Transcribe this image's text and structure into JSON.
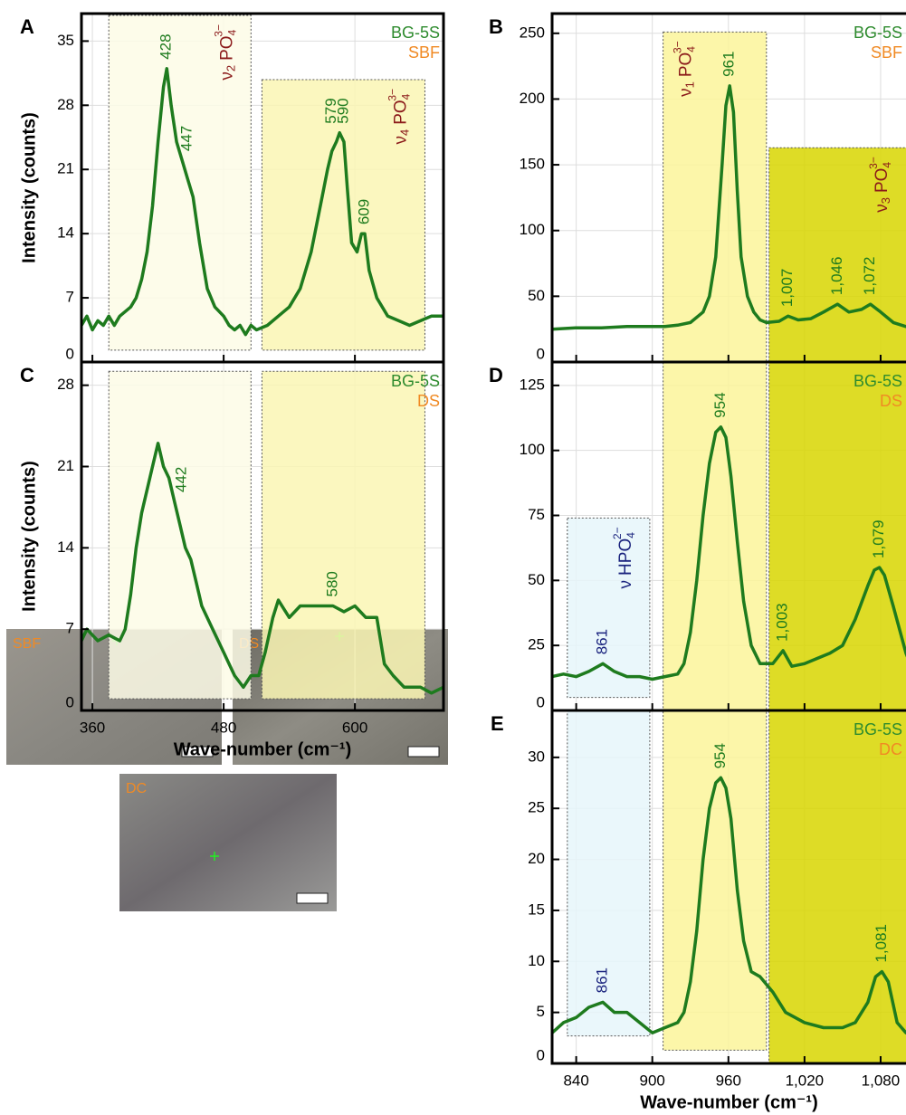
{
  "chart_data": [
    {
      "type": "line",
      "panel": "A",
      "ylabel": "Intensity (counts)",
      "condition": "SBF",
      "show_xtick_labels": false,
      "xlim": [
        350,
        681
      ],
      "ylim": [
        0,
        38
      ],
      "xticks": [
        360,
        480,
        600
      ],
      "yticks": [
        0,
        7,
        14,
        21,
        28,
        35
      ],
      "grid": true,
      "x": [
        350,
        355,
        360,
        365,
        370,
        375,
        380,
        385,
        390,
        395,
        400,
        405,
        410,
        415,
        420,
        425,
        428,
        432,
        437,
        442,
        447,
        452,
        458,
        465,
        472,
        480,
        485,
        490,
        495,
        500,
        505,
        510,
        520,
        530,
        540,
        550,
        560,
        570,
        575,
        579,
        583,
        586,
        590,
        593,
        597,
        602,
        606,
        609,
        613,
        620,
        630,
        640,
        650,
        660,
        670,
        681
      ],
      "series": [
        {
          "name": "BG-5S",
          "color": "#1e7b1e",
          "values": [
            4,
            5,
            3.5,
            4.5,
            4,
            5,
            4,
            5,
            5.5,
            6,
            7,
            9,
            12,
            17,
            24,
            30,
            32,
            28,
            24,
            22,
            20,
            18,
            13,
            8,
            6,
            5,
            4,
            3.5,
            4,
            3,
            4,
            3.5,
            4,
            5,
            6,
            8,
            12,
            18,
            21,
            23,
            24,
            25,
            24,
            19,
            13,
            12,
            14,
            14,
            10,
            7,
            5,
            4.5,
            4,
            4.5,
            5,
            5
          ]
        }
      ],
      "bands": [
        {
          "x": [
            375,
            505
          ],
          "y": [
            1.3,
            37.8
          ],
          "fill": "#fdfce6",
          "label_side": "right",
          "label": {
            "text": "ν",
            "sub": "2",
            "ion": "PO",
            "ion_sub": "4",
            "ion_sup": "3−",
            "color": "#8b1a1a"
          }
        },
        {
          "x": [
            515,
            664
          ],
          "y": [
            1.3,
            30.8
          ],
          "fill": "#faf6b4",
          "label_side": "right",
          "label": {
            "text": "ν",
            "sub": "4",
            "ion": "PO",
            "ion_sub": "4",
            "ion_sup": "3−",
            "color": "#8b1a1a"
          }
        }
      ],
      "peaks": [
        {
          "x": 428,
          "color": "#1e7b1e"
        },
        {
          "x": 447,
          "color": "#1e7b1e"
        },
        {
          "x": 579,
          "color": "#1e7b1e"
        },
        {
          "x": 590,
          "color": "#1e7b1e"
        },
        {
          "x": 609,
          "color": "#1e7b1e"
        }
      ]
    },
    {
      "type": "line",
      "panel": "B",
      "condition": "SBF",
      "show_xtick_labels": false,
      "xlim": [
        821,
        1110
      ],
      "ylim": [
        0,
        265
      ],
      "xticks": [
        840,
        900,
        960,
        {
          "value": 1020,
          "label": "1,020"
        },
        {
          "value": 1080,
          "label": "1,080"
        }
      ],
      "yticks": [
        0,
        50,
        100,
        150,
        200,
        250
      ],
      "grid": true,
      "x": [
        821,
        840,
        860,
        880,
        900,
        910,
        920,
        930,
        940,
        945,
        950,
        955,
        958,
        961,
        964,
        967,
        970,
        975,
        980,
        985,
        990,
        1000,
        1007,
        1015,
        1025,
        1035,
        1046,
        1055,
        1065,
        1072,
        1080,
        1090,
        1100,
        1110
      ],
      "series": [
        {
          "name": "BG-5S",
          "color": "#1e7b1e",
          "values": [
            25,
            26,
            26,
            27,
            27,
            27,
            28,
            30,
            38,
            50,
            80,
            150,
            195,
            210,
            190,
            130,
            80,
            50,
            38,
            32,
            30,
            31,
            35,
            32,
            33,
            38,
            44,
            38,
            40,
            44,
            38,
            30,
            27,
            25
          ]
        }
      ],
      "bands": [
        {
          "x": [
            908.5,
            990
          ],
          "y": [
            0,
            251
          ],
          "fill": "#fbf59a",
          "label_side": "left",
          "label": {
            "text": "ν",
            "sub": "1",
            "ion": "PO",
            "ion_sub": "4",
            "ion_sup": "3−",
            "color": "#8b1a1a"
          }
        },
        {
          "x": [
            992,
            1110
          ],
          "y": [
            0,
            163
          ],
          "fill": "#d8d600",
          "label_side": "right",
          "label": {
            "text": "ν",
            "sub": "3",
            "ion": "PO",
            "ion_sub": "4",
            "ion_sup": "3−",
            "color": "#8b1a1a"
          }
        }
      ],
      "peaks": [
        {
          "x": 961,
          "color": "#1e7b1e"
        },
        {
          "x": 1007,
          "label": "1,007",
          "color": "#1e7b1e"
        },
        {
          "x": 1046,
          "label": "1,046",
          "color": "#1e7b1e"
        },
        {
          "x": 1072,
          "label": "1,072",
          "color": "#1e7b1e"
        }
      ]
    },
    {
      "type": "line",
      "panel": "C",
      "ylabel": "Intensity (counts)",
      "xlabel": "Wave-number (cm⁻¹)",
      "condition": "DS",
      "show_xtick_labels": true,
      "xlim": [
        350,
        681
      ],
      "ylim": [
        0,
        30
      ],
      "xticks": [
        360,
        480,
        600
      ],
      "yticks": [
        0,
        7,
        14,
        21,
        28
      ],
      "grid": true,
      "x": [
        350,
        355,
        365,
        375,
        385,
        390,
        395,
        400,
        405,
        410,
        415,
        420,
        425,
        430,
        435,
        440,
        445,
        450,
        455,
        460,
        470,
        480,
        490,
        498,
        505,
        512,
        518,
        525,
        530,
        540,
        550,
        560,
        570,
        580,
        590,
        600,
        610,
        620,
        627,
        635,
        645,
        660,
        670,
        681
      ],
      "series": [
        {
          "name": "BG-5S",
          "color": "#1e7b1e",
          "values": [
            6,
            7,
            6,
            6.5,
            6,
            7,
            10,
            14,
            17,
            19,
            21,
            23,
            21,
            20,
            18,
            16,
            14,
            13,
            11,
            9,
            7,
            5,
            3,
            2,
            3,
            3,
            5,
            8,
            9.5,
            8,
            9,
            9,
            9,
            9,
            8.5,
            9,
            8,
            8,
            4,
            3,
            2,
            2,
            1.5,
            2
          ]
        }
      ],
      "bands": [
        {
          "x": [
            375,
            505
          ],
          "y": [
            1,
            29.2
          ],
          "fill": "#fdfce6"
        },
        {
          "x": [
            515,
            664
          ],
          "y": [
            1,
            29.2
          ],
          "fill": "#faf6b4"
        }
      ],
      "peaks": [
        {
          "x": 442,
          "color": "#1e7b1e"
        },
        {
          "x": 580,
          "color": "#1e7b1e"
        }
      ]
    },
    {
      "type": "line",
      "panel": "D",
      "condition": "DS",
      "show_xtick_labels": false,
      "xlim": [
        821,
        1110
      ],
      "ylim": [
        0,
        134
      ],
      "xticks": [
        840,
        900,
        960,
        {
          "value": 1020,
          "label": "1,020"
        },
        {
          "value": 1080,
          "label": "1,080"
        }
      ],
      "yticks": [
        0,
        25,
        50,
        75,
        100,
        125
      ],
      "grid": true,
      "x": [
        821,
        830,
        840,
        850,
        861,
        870,
        880,
        890,
        900,
        910,
        920,
        925,
        930,
        935,
        940,
        945,
        950,
        954,
        958,
        962,
        967,
        972,
        978,
        985,
        995,
        1003,
        1010,
        1020,
        1030,
        1040,
        1050,
        1060,
        1070,
        1075,
        1079,
        1083,
        1090,
        1100,
        1105,
        1110
      ],
      "series": [
        {
          "name": "BG-5S",
          "color": "#1e7b1e",
          "values": [
            13,
            14,
            13,
            15,
            18,
            15,
            13,
            13,
            12,
            13,
            14,
            18,
            30,
            50,
            75,
            95,
            107,
            109,
            105,
            90,
            65,
            42,
            25,
            18,
            18,
            23,
            17,
            18,
            20,
            22,
            25,
            35,
            48,
            54,
            55,
            52,
            40,
            22,
            16,
            14
          ]
        }
      ],
      "bands": [
        {
          "x": [
            833,
            898
          ],
          "y": [
            5,
            74
          ],
          "fill": "#e6f6fa",
          "label_side": "right",
          "label": {
            "text": "ν",
            "ion": "HPO",
            "ion_sub": "4",
            "ion_sup": "2−",
            "color": "#1a237e"
          }
        },
        {
          "x": [
            908.5,
            990
          ],
          "y": [
            0,
            134
          ],
          "fill": "#fbf59a"
        },
        {
          "x": [
            992,
            1110
          ],
          "y": [
            0,
            134
          ],
          "fill": "#d8d600"
        }
      ],
      "peaks": [
        {
          "x": 861,
          "color": "#1a237e"
        },
        {
          "x": 954,
          "color": "#1e7b1e"
        },
        {
          "x": 1003,
          "label": "1,003",
          "color": "#1e7b1e"
        },
        {
          "x": 1079,
          "label": "1,079",
          "color": "#1e7b1e"
        }
      ]
    },
    {
      "type": "line",
      "panel": "E",
      "xlabel": "Wave-number (cm⁻¹)",
      "condition": "DC",
      "show_xtick_labels": true,
      "xlim": [
        821,
        1110
      ],
      "ylim": [
        0,
        34.6
      ],
      "xticks": [
        840,
        900,
        960,
        {
          "value": 1020,
          "label": "1,020"
        },
        {
          "value": 1080,
          "label": "1,080"
        }
      ],
      "yticks": [
        0,
        5,
        10,
        15,
        20,
        25,
        30
      ],
      "grid": true,
      "x": [
        821,
        830,
        840,
        850,
        861,
        870,
        880,
        890,
        900,
        910,
        920,
        925,
        930,
        935,
        940,
        945,
        950,
        954,
        958,
        962,
        967,
        972,
        978,
        985,
        995,
        1005,
        1020,
        1035,
        1050,
        1060,
        1070,
        1076,
        1081,
        1086,
        1093,
        1100,
        1110
      ],
      "series": [
        {
          "name": "BG-5S",
          "color": "#1e7b1e",
          "values": [
            3,
            4,
            4.5,
            5.5,
            6,
            5,
            5,
            4,
            3,
            3.5,
            4,
            5,
            8,
            13,
            20,
            25,
            27.5,
            28,
            27,
            24,
            17,
            12,
            9,
            8.5,
            7,
            5,
            4,
            3.5,
            3.5,
            4,
            6,
            8.5,
            9,
            8,
            4,
            3,
            3
          ]
        }
      ],
      "bands": [
        {
          "x": [
            833,
            898
          ],
          "y": [
            2.7,
            34.6
          ],
          "fill": "#e6f6fa"
        },
        {
          "x": [
            908.5,
            990
          ],
          "y": [
            1.3,
            34.6
          ],
          "fill": "#fbf59a"
        },
        {
          "x": [
            992,
            1110
          ],
          "y": [
            0,
            34.6
          ],
          "fill": "#d8d600"
        }
      ],
      "peaks": [
        {
          "x": 861,
          "color": "#1a237e"
        },
        {
          "x": 954,
          "color": "#1e7b1e"
        },
        {
          "x": 1081,
          "label": "1,081",
          "color": "#1e7b1e"
        }
      ]
    }
  ],
  "micrographs": [
    {
      "label": "SBF"
    },
    {
      "label": "DS"
    },
    {
      "label": "DC"
    }
  ]
}
